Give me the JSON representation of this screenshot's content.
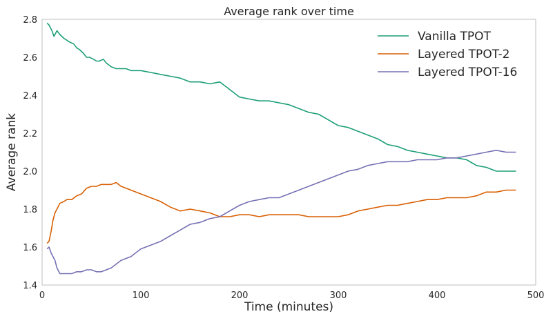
{
  "chart_data": {
    "type": "line",
    "title": "Average rank over time",
    "xlabel": "Time (minutes)",
    "ylabel": "Average rank",
    "xlim": [
      0,
      500
    ],
    "ylim": [
      1.4,
      2.8
    ],
    "xticks": [
      0,
      100,
      200,
      300,
      400,
      500
    ],
    "yticks": [
      1.4,
      1.6,
      1.8,
      2.0,
      2.2,
      2.4,
      2.6,
      2.8
    ],
    "xtick_labels": [
      "0",
      "100",
      "200",
      "300",
      "400",
      "500"
    ],
    "ytick_labels": [
      "1.4",
      "1.6",
      "1.8",
      "2.0",
      "2.2",
      "2.4",
      "2.6",
      "2.8"
    ],
    "grid": false,
    "legend_position": "top-right",
    "series": [
      {
        "name": "Vanilla TPOT",
        "color": "#1b9e77",
        "x": [
          5,
          7,
          10,
          12,
          15,
          18,
          22,
          25,
          28,
          32,
          35,
          38,
          42,
          45,
          48,
          52,
          55,
          58,
          62,
          65,
          70,
          75,
          80,
          85,
          90,
          95,
          100,
          110,
          120,
          130,
          140,
          150,
          160,
          170,
          180,
          185,
          190,
          195,
          200,
          210,
          220,
          230,
          240,
          250,
          260,
          270,
          280,
          290,
          300,
          310,
          320,
          330,
          340,
          350,
          360,
          370,
          380,
          390,
          400,
          410,
          420,
          430,
          440,
          450,
          460,
          470,
          480
        ],
        "y": [
          2.78,
          2.77,
          2.74,
          2.71,
          2.74,
          2.72,
          2.7,
          2.69,
          2.68,
          2.67,
          2.65,
          2.64,
          2.62,
          2.6,
          2.6,
          2.59,
          2.58,
          2.58,
          2.59,
          2.57,
          2.55,
          2.54,
          2.54,
          2.54,
          2.53,
          2.53,
          2.53,
          2.52,
          2.51,
          2.5,
          2.49,
          2.47,
          2.47,
          2.46,
          2.47,
          2.45,
          2.43,
          2.41,
          2.39,
          2.38,
          2.37,
          2.37,
          2.36,
          2.35,
          2.33,
          2.31,
          2.3,
          2.27,
          2.24,
          2.23,
          2.21,
          2.19,
          2.17,
          2.14,
          2.13,
          2.11,
          2.1,
          2.09,
          2.08,
          2.07,
          2.07,
          2.06,
          2.03,
          2.02,
          2.0,
          2.0,
          2.0
        ]
      },
      {
        "name": "Layered TPOT-2",
        "color": "#d95f02",
        "x": [
          5,
          7,
          9,
          11,
          13,
          15,
          18,
          22,
          25,
          30,
          35,
          40,
          45,
          50,
          55,
          60,
          65,
          70,
          75,
          80,
          85,
          90,
          95,
          100,
          110,
          120,
          130,
          140,
          150,
          160,
          170,
          180,
          190,
          200,
          210,
          220,
          230,
          240,
          250,
          260,
          270,
          280,
          290,
          300,
          310,
          320,
          330,
          340,
          350,
          360,
          370,
          380,
          390,
          400,
          410,
          420,
          430,
          440,
          450,
          460,
          470,
          480
        ],
        "y": [
          1.62,
          1.63,
          1.68,
          1.74,
          1.78,
          1.8,
          1.83,
          1.84,
          1.85,
          1.85,
          1.87,
          1.88,
          1.91,
          1.92,
          1.92,
          1.93,
          1.93,
          1.93,
          1.94,
          1.92,
          1.91,
          1.9,
          1.89,
          1.88,
          1.86,
          1.84,
          1.81,
          1.79,
          1.8,
          1.79,
          1.78,
          1.76,
          1.76,
          1.77,
          1.77,
          1.76,
          1.77,
          1.77,
          1.77,
          1.77,
          1.76,
          1.76,
          1.76,
          1.76,
          1.77,
          1.79,
          1.8,
          1.81,
          1.82,
          1.82,
          1.83,
          1.84,
          1.85,
          1.85,
          1.86,
          1.86,
          1.86,
          1.87,
          1.89,
          1.89,
          1.9,
          1.9
        ]
      },
      {
        "name": "Layered TPOT-16",
        "color": "#7570b3",
        "x": [
          5,
          7,
          9,
          11,
          13,
          15,
          18,
          22,
          25,
          30,
          35,
          40,
          45,
          50,
          55,
          60,
          65,
          70,
          75,
          80,
          85,
          90,
          95,
          100,
          110,
          120,
          130,
          140,
          150,
          160,
          170,
          180,
          190,
          200,
          210,
          220,
          230,
          240,
          250,
          260,
          270,
          280,
          290,
          300,
          310,
          320,
          330,
          340,
          350,
          360,
          370,
          380,
          390,
          400,
          410,
          420,
          430,
          440,
          450,
          460,
          470,
          480
        ],
        "y": [
          1.59,
          1.6,
          1.57,
          1.55,
          1.53,
          1.49,
          1.46,
          1.46,
          1.46,
          1.46,
          1.47,
          1.47,
          1.48,
          1.48,
          1.47,
          1.47,
          1.48,
          1.49,
          1.51,
          1.53,
          1.54,
          1.55,
          1.57,
          1.59,
          1.61,
          1.63,
          1.66,
          1.69,
          1.72,
          1.73,
          1.75,
          1.76,
          1.79,
          1.82,
          1.84,
          1.85,
          1.86,
          1.86,
          1.88,
          1.9,
          1.92,
          1.94,
          1.96,
          1.98,
          2.0,
          2.01,
          2.03,
          2.04,
          2.05,
          2.05,
          2.05,
          2.06,
          2.06,
          2.06,
          2.07,
          2.07,
          2.08,
          2.09,
          2.1,
          2.11,
          2.1,
          2.1
        ]
      }
    ]
  }
}
